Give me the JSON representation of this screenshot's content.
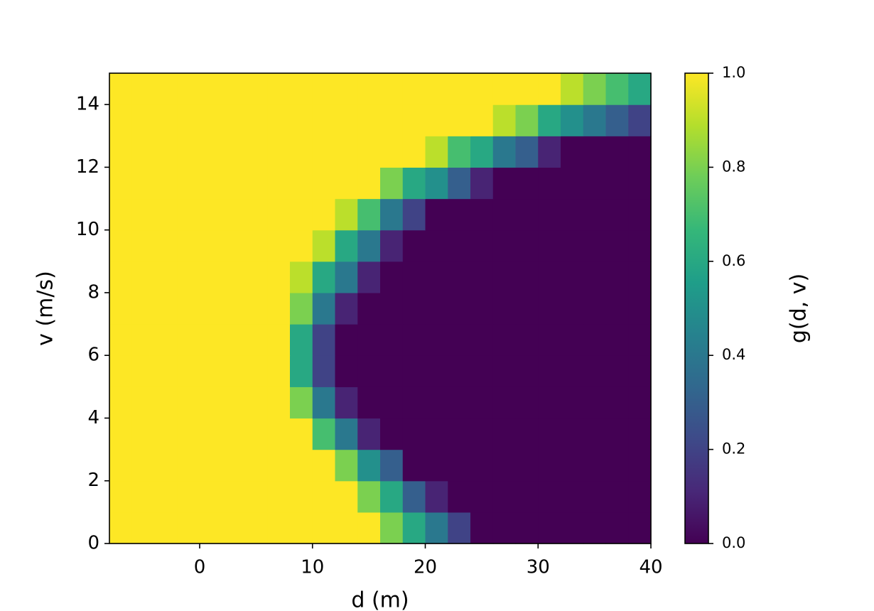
{
  "chart_data": {
    "type": "heatmap",
    "xlabel": "d (m)",
    "ylabel": "v (m/s)",
    "colorbar_label": "g(d, v)",
    "xlim": [
      -8,
      40
    ],
    "ylim": [
      0,
      15
    ],
    "xticks": [
      0,
      10,
      20,
      30,
      40
    ],
    "yticks": [
      0,
      2,
      4,
      6,
      8,
      10,
      12,
      14
    ],
    "colormap": "viridis",
    "clim": [
      0,
      1
    ],
    "cticks": [
      {
        "value": 0,
        "label": "0.0"
      },
      {
        "value": 0.2,
        "label": "0.2"
      },
      {
        "value": 0.4,
        "label": "0.4"
      },
      {
        "value": 0.6,
        "label": "0.6"
      },
      {
        "value": 0.8,
        "label": "0.8"
      },
      {
        "value": 1,
        "label": "1.0"
      }
    ],
    "values": [
      [
        1,
        1,
        1,
        1,
        1,
        1,
        1,
        1,
        1,
        1,
        1,
        1,
        0.8,
        0.6,
        0.4,
        0.2,
        0,
        0,
        0,
        0,
        0,
        0,
        0,
        0
      ],
      [
        1,
        1,
        1,
        1,
        1,
        1,
        1,
        1,
        1,
        1,
        1,
        0.8,
        0.6,
        0.3,
        0.1,
        0,
        0,
        0,
        0,
        0,
        0,
        0,
        0,
        0
      ],
      [
        1,
        1,
        1,
        1,
        1,
        1,
        1,
        1,
        1,
        1,
        0.8,
        0.5,
        0.3,
        0,
        0,
        0,
        0,
        0,
        0,
        0,
        0,
        0,
        0,
        0
      ],
      [
        1,
        1,
        1,
        1,
        1,
        1,
        1,
        1,
        1,
        0.7,
        0.4,
        0.1,
        0,
        0,
        0,
        0,
        0,
        0,
        0,
        0,
        0,
        0,
        0,
        0
      ],
      [
        1,
        1,
        1,
        1,
        1,
        1,
        1,
        1,
        0.8,
        0.4,
        0.1,
        0,
        0,
        0,
        0,
        0,
        0,
        0,
        0,
        0,
        0,
        0,
        0,
        0
      ],
      [
        1,
        1,
        1,
        1,
        1,
        1,
        1,
        1,
        0.6,
        0.2,
        0,
        0,
        0,
        0,
        0,
        0,
        0,
        0,
        0,
        0,
        0,
        0,
        0,
        0
      ],
      [
        1,
        1,
        1,
        1,
        1,
        1,
        1,
        1,
        0.6,
        0.2,
        0,
        0,
        0,
        0,
        0,
        0,
        0,
        0,
        0,
        0,
        0,
        0,
        0,
        0
      ],
      [
        1,
        1,
        1,
        1,
        1,
        1,
        1,
        1,
        0.8,
        0.4,
        0.1,
        0,
        0,
        0,
        0,
        0,
        0,
        0,
        0,
        0,
        0,
        0,
        0,
        0
      ],
      [
        1,
        1,
        1,
        1,
        1,
        1,
        1,
        1,
        0.9,
        0.6,
        0.4,
        0.1,
        0,
        0,
        0,
        0,
        0,
        0,
        0,
        0,
        0,
        0,
        0,
        0
      ],
      [
        1,
        1,
        1,
        1,
        1,
        1,
        1,
        1,
        1,
        0.9,
        0.6,
        0.4,
        0.1,
        0,
        0,
        0,
        0,
        0,
        0,
        0,
        0,
        0,
        0,
        0
      ],
      [
        1,
        1,
        1,
        1,
        1,
        1,
        1,
        1,
        1,
        1,
        0.9,
        0.7,
        0.4,
        0.2,
        0,
        0,
        0,
        0,
        0,
        0,
        0,
        0,
        0,
        0
      ],
      [
        1,
        1,
        1,
        1,
        1,
        1,
        1,
        1,
        1,
        1,
        1,
        1,
        0.8,
        0.6,
        0.5,
        0.3,
        0.1,
        0,
        0,
        0,
        0,
        0,
        0,
        0
      ],
      [
        1,
        1,
        1,
        1,
        1,
        1,
        1,
        1,
        1,
        1,
        1,
        1,
        1,
        1,
        0.9,
        0.7,
        0.6,
        0.4,
        0.3,
        0.1,
        0,
        0,
        0,
        0
      ],
      [
        1,
        1,
        1,
        1,
        1,
        1,
        1,
        1,
        1,
        1,
        1,
        1,
        1,
        1,
        1,
        1,
        1,
        0.9,
        0.8,
        0.6,
        0.5,
        0.4,
        0.3,
        0.2
      ],
      [
        1,
        1,
        1,
        1,
        1,
        1,
        1,
        1,
        1,
        1,
        1,
        1,
        1,
        1,
        1,
        1,
        1,
        1,
        1,
        1,
        0.9,
        0.8,
        0.7,
        0.6
      ]
    ]
  }
}
